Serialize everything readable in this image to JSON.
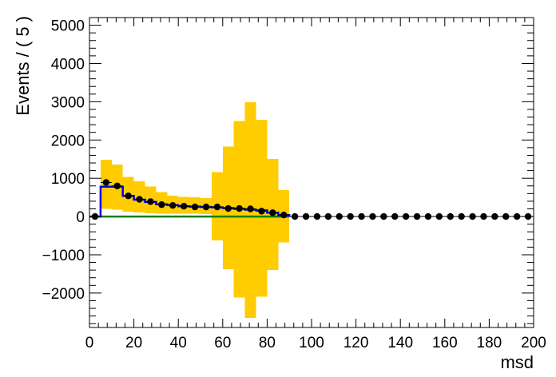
{
  "chart_data": {
    "type": "bar",
    "xlabel": "msd",
    "ylabel": "Events / ( 5 )",
    "xlim": [
      0,
      200
    ],
    "ylim": [
      -2900,
      5200
    ],
    "x_ticks": [
      0,
      20,
      40,
      60,
      80,
      100,
      120,
      140,
      160,
      180,
      200
    ],
    "x_tick_labels": [
      "0",
      "20",
      "40",
      "60",
      "80",
      "100",
      "120",
      "140",
      "160",
      "180",
      "200"
    ],
    "y_ticks": [
      -2000,
      -1000,
      0,
      1000,
      2000,
      3000,
      4000,
      5000
    ],
    "y_tick_labels": [
      "−2000",
      "−1000",
      "0",
      "1000",
      "2000",
      "3000",
      "4000",
      "5000"
    ],
    "grid": false,
    "colors": {
      "band": "#ffcc00",
      "blue": "#0000ee",
      "green": "#008000",
      "points": "#000000"
    },
    "bin_edges": [
      0,
      5,
      10,
      15,
      20,
      25,
      30,
      35,
      40,
      45,
      50,
      55,
      60,
      65,
      70,
      75,
      80,
      85,
      90
    ],
    "uncertainty_band": {
      "lower": [
        0,
        200,
        180,
        130,
        110,
        90,
        80,
        70,
        80,
        70,
        60,
        -620,
        -1380,
        -2120,
        -2650,
        -2100,
        -1400,
        -680
      ],
      "upper": [
        0,
        1480,
        1360,
        1040,
        920,
        780,
        640,
        540,
        510,
        500,
        480,
        1160,
        1830,
        2500,
        2990,
        2530,
        1510,
        690
      ]
    },
    "blue_hist": [
      0,
      780,
      780,
      540,
      440,
      380,
      320,
      300,
      270,
      260,
      250,
      240,
      220,
      200,
      180,
      160,
      100,
      40,
      0
    ],
    "green_line": {
      "x": [
        5,
        90
      ],
      "y": [
        0,
        0
      ]
    },
    "points": {
      "x": [
        2.5,
        7.5,
        12.5,
        17.5,
        22.5,
        27.5,
        32.5,
        37.5,
        42.5,
        47.5,
        52.5,
        57.5,
        62.5,
        67.5,
        72.5,
        77.5,
        82.5,
        87.5,
        92.5,
        97.5,
        102.5,
        107.5,
        112.5,
        117.5,
        122.5,
        127.5,
        132.5,
        137.5,
        142.5,
        147.5,
        152.5,
        157.5,
        162.5,
        167.5,
        172.5,
        177.5,
        182.5,
        187.5,
        192.5,
        197.5
      ],
      "y": [
        0,
        890,
        800,
        540,
        450,
        390,
        310,
        290,
        270,
        250,
        250,
        250,
        210,
        210,
        200,
        140,
        100,
        40,
        0,
        0,
        0,
        0,
        0,
        0,
        0,
        0,
        0,
        0,
        0,
        0,
        0,
        0,
        0,
        0,
        0,
        0,
        0,
        0,
        0,
        0
      ],
      "yerr": [
        0,
        30,
        28,
        23,
        21,
        20,
        18,
        17,
        16,
        16,
        16,
        16,
        15,
        15,
        14,
        12,
        10,
        6,
        0,
        0,
        0,
        0,
        0,
        0,
        0,
        0,
        0,
        0,
        0,
        0,
        0,
        0,
        0,
        0,
        0,
        0,
        0,
        0,
        0,
        0
      ]
    }
  }
}
